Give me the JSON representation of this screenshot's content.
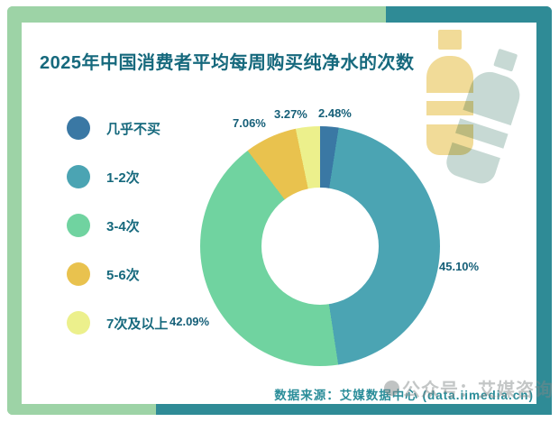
{
  "page": {
    "title": "2025年中国消费者平均每周购买纯净水的次数",
    "source": "数据来源：艾媒数据中心 (data.iimedia.cn)",
    "watermark": "公众号：艾媒咨询"
  },
  "colors": {
    "frame_teal": "#2f8b96",
    "frame_mint": "#9dd3a6",
    "title_text": "#16697d",
    "legend_text": "#16697d",
    "percent_text": "#155f78",
    "source_text": "#2a8d99",
    "bottle_yellow": "#f1db98",
    "bottle_blue": "#c7d9d4"
  },
  "chart_data": {
    "type": "pie",
    "subtype": "donut",
    "title": "2025年中国消费者平均每周购买纯净水的次数",
    "categories": [
      "几乎不买",
      "1-2次",
      "3-4次",
      "5-6次",
      "7次及以上"
    ],
    "values": [
      2.48,
      45.1,
      42.09,
      7.06,
      3.27
    ],
    "labels": [
      "2.48%",
      "45.10%",
      "42.09%",
      "7.06%",
      "3.27%"
    ],
    "colors": [
      "#3a78a4",
      "#4ba4b3",
      "#70d3a0",
      "#e9c24e",
      "#ecf08c"
    ],
    "unit": "%",
    "start_angle_deg": 0,
    "direction": "clockwise",
    "donut_hole_ratio": 0.49,
    "legend_position": "left"
  }
}
